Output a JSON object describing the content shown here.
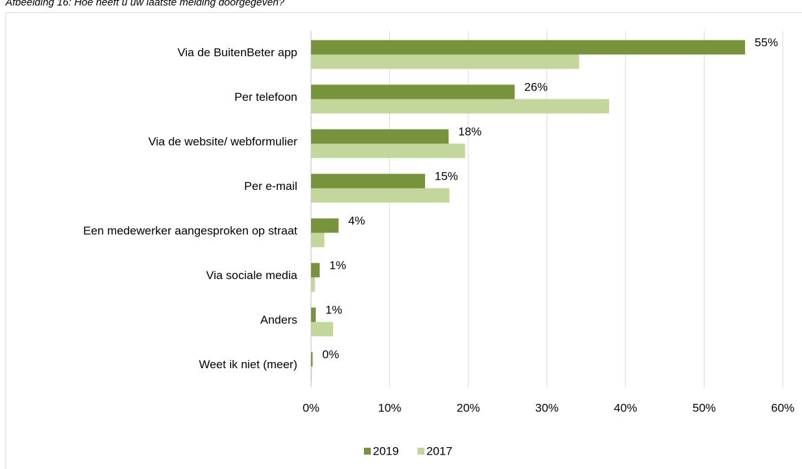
{
  "chart_data": {
    "type": "bar",
    "orientation": "horizontal",
    "title": "Afbeelding 16: Hoe heeft u uw laatste melding doorgegeven?",
    "categories": [
      "Via de BuitenBeter app",
      "Per telefoon",
      "Via de website/ webformulier",
      "Per e-mail",
      "Een medewerker aangesproken op straat",
      "Via sociale media",
      "Anders",
      "Weet ik niet (meer)"
    ],
    "series": [
      {
        "name": "2019",
        "color": "#77933c",
        "values": [
          55.2,
          25.9,
          17.5,
          14.5,
          3.5,
          1.1,
          0.6,
          0.2
        ],
        "value_labels": [
          "55%",
          "26%",
          "18%",
          "15%",
          "4%",
          "1%",
          "1%",
          "0%"
        ]
      },
      {
        "name": "2017",
        "color": "#c3d69b",
        "values": [
          34.1,
          37.9,
          19.6,
          17.6,
          1.7,
          0.5,
          2.8,
          0.1
        ]
      }
    ],
    "xlim": [
      0,
      60
    ],
    "xticks": [
      {
        "value": 0,
        "label": "0%"
      },
      {
        "value": 10,
        "label": "10%"
      },
      {
        "value": 20,
        "label": "20%"
      },
      {
        "value": 30,
        "label": "30%"
      },
      {
        "value": 40,
        "label": "40%"
      },
      {
        "value": 50,
        "label": "50%"
      },
      {
        "value": 60,
        "label": "60%"
      }
    ],
    "grid": true,
    "legend": "bottom"
  }
}
